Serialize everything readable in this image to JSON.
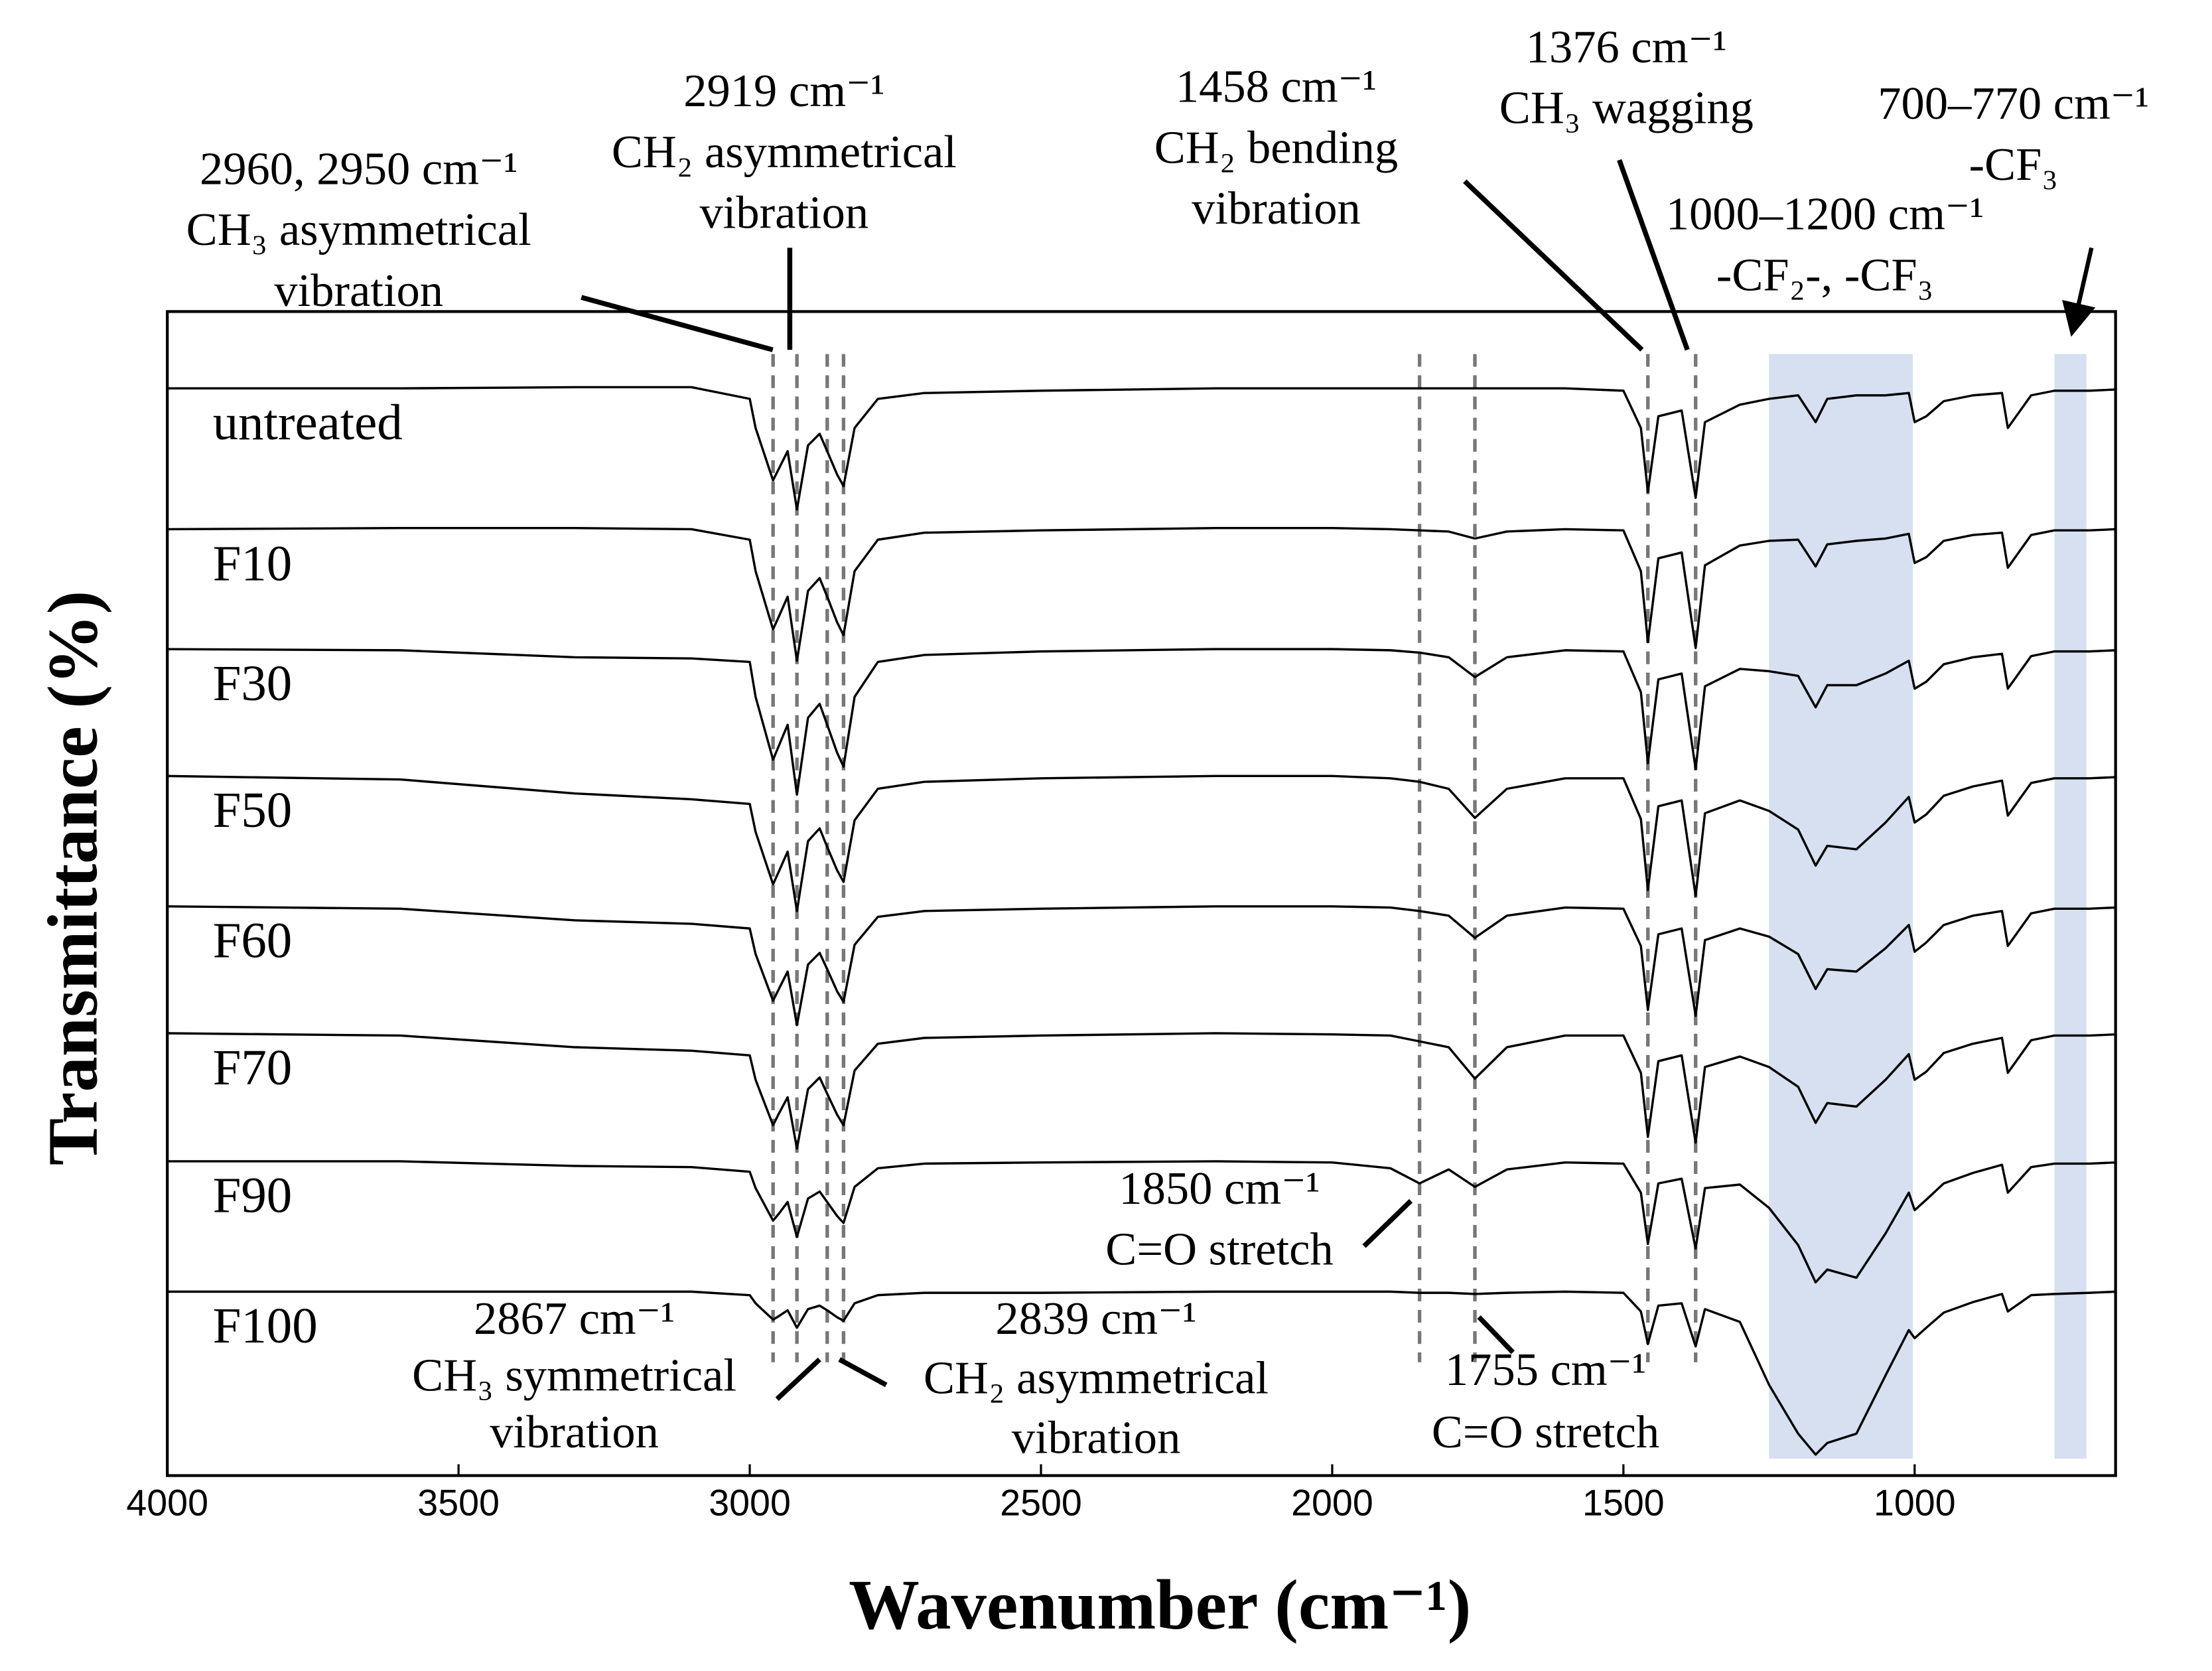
{
  "chart_data": {
    "type": "line",
    "x_label": "Wavenumber (cm⁻¹)",
    "y_label": "Transmittance (%)",
    "xlim": [
      4000,
      655
    ],
    "ylim": [
      0,
      100
    ],
    "xticks": [
      4000,
      3500,
      3000,
      2500,
      2000,
      1500,
      1000
    ],
    "grid": false,
    "x": [
      4000,
      3600,
      3300,
      3100,
      3000,
      2990,
      2960,
      2950,
      2935,
      2919,
      2900,
      2880,
      2867,
      2850,
      2839,
      2820,
      2780,
      2700,
      2500,
      2200,
      2000,
      1900,
      1850,
      1800,
      1755,
      1700,
      1600,
      1500,
      1470,
      1458,
      1440,
      1400,
      1376,
      1360,
      1300,
      1250,
      1200,
      1170,
      1150,
      1100,
      1050,
      1010,
      1000,
      980,
      950,
      900,
      850,
      840,
      800,
      760,
      700,
      655
    ],
    "series": [
      {
        "name": "untreated",
        "color": "#000000",
        "values": [
          93.4,
          93.4,
          93.5,
          93.5,
          92.5,
          90.0,
          85.5,
          86.5,
          88.0,
          83.0,
          88.5,
          89.5,
          88.0,
          86.0,
          85.0,
          90.0,
          92.5,
          93.0,
          93.2,
          93.4,
          93.4,
          93.4,
          93.4,
          93.4,
          93.4,
          93.4,
          93.4,
          93.2,
          90.0,
          84.5,
          91.0,
          91.5,
          84.0,
          90.5,
          92.0,
          92.5,
          92.8,
          90.5,
          92.5,
          92.8,
          92.8,
          93.0,
          90.5,
          91.0,
          92.3,
          92.8,
          93.0,
          90.0,
          92.8,
          93.2,
          93.2,
          93.3
        ]
      },
      {
        "name": "F10",
        "color": "#000000",
        "values": [
          81.3,
          81.4,
          81.4,
          81.3,
          80.4,
          77.7,
          72.7,
          73.8,
          75.5,
          70.0,
          76.0,
          77.1,
          75.5,
          73.3,
          72.2,
          77.7,
          80.4,
          81.0,
          81.2,
          81.4,
          81.4,
          81.3,
          81.2,
          81.1,
          80.5,
          81.1,
          81.3,
          81.2,
          77.7,
          71.6,
          78.8,
          79.3,
          71.1,
          78.2,
          79.9,
          80.3,
          80.4,
          78.1,
          80.0,
          80.3,
          80.5,
          80.9,
          78.4,
          78.9,
          80.3,
          80.8,
          81.0,
          78.0,
          80.8,
          81.2,
          81.2,
          81.3
        ]
      },
      {
        "name": "F30",
        "color": "#000000",
        "values": [
          71.0,
          70.9,
          70.3,
          70.2,
          69.9,
          66.9,
          61.5,
          62.7,
          64.5,
          58.5,
          65.1,
          66.3,
          64.5,
          62.1,
          60.9,
          66.9,
          69.9,
          70.5,
          70.8,
          71.0,
          71.0,
          70.9,
          70.7,
          70.3,
          68.6,
          70.3,
          70.9,
          70.8,
          67.3,
          61.2,
          68.4,
          68.9,
          60.7,
          67.8,
          69.3,
          69.1,
          68.7,
          66.0,
          67.9,
          67.9,
          68.9,
          70.0,
          67.6,
          68.2,
          69.7,
          70.3,
          70.6,
          67.6,
          70.4,
          70.8,
          70.8,
          70.9
        ]
      },
      {
        "name": "F50",
        "color": "#000000",
        "values": [
          60.1,
          59.8,
          58.6,
          58.1,
          57.7,
          55.3,
          50.8,
          51.9,
          53.6,
          48.5,
          54.5,
          55.6,
          54.0,
          52.0,
          51.0,
          56.3,
          59.0,
          59.6,
          59.9,
          60.1,
          60.1,
          59.9,
          59.6,
          59.0,
          56.5,
          59.0,
          59.9,
          59.9,
          56.4,
          50.3,
          57.5,
          58.0,
          49.8,
          56.9,
          58.0,
          57.1,
          55.5,
          52.4,
          54.1,
          53.8,
          56.1,
          58.3,
          56.1,
          56.8,
          58.4,
          59.2,
          59.7,
          56.7,
          59.5,
          59.9,
          59.9,
          60.0
        ]
      },
      {
        "name": "F60",
        "color": "#000000",
        "values": [
          48.9,
          48.7,
          47.7,
          47.4,
          47.0,
          44.8,
          40.8,
          41.8,
          43.3,
          38.7,
          43.9,
          44.9,
          43.5,
          41.6,
          40.7,
          45.6,
          48.0,
          48.5,
          48.7,
          48.9,
          48.9,
          48.8,
          48.5,
          48.1,
          46.2,
          48.1,
          48.8,
          48.7,
          45.5,
          40.0,
          46.5,
          47.0,
          39.5,
          46.0,
          47.0,
          46.3,
          44.8,
          41.8,
          43.5,
          43.3,
          45.3,
          47.3,
          45.0,
          45.8,
          47.3,
          48.1,
          48.5,
          45.5,
          48.3,
          48.7,
          48.7,
          48.8
        ]
      },
      {
        "name": "F70",
        "color": "#000000",
        "values": [
          38.0,
          37.8,
          36.8,
          36.5,
          36.1,
          34.0,
          30.1,
          31.1,
          32.5,
          28.1,
          33.2,
          34.2,
          32.8,
          31.0,
          30.1,
          34.8,
          37.1,
          37.6,
          37.8,
          38.0,
          37.9,
          37.8,
          37.3,
          36.8,
          34.1,
          36.8,
          37.8,
          37.8,
          34.6,
          29.1,
          35.6,
          36.1,
          28.6,
          35.1,
          36.0,
          35.1,
          33.4,
          30.3,
          32.0,
          31.7,
          34.0,
          36.2,
          34.0,
          34.7,
          36.3,
          37.1,
          37.6,
          34.6,
          37.4,
          37.8,
          37.8,
          37.9
        ]
      },
      {
        "name": "F90",
        "color": "#000000",
        "values": [
          27.0,
          27.0,
          26.6,
          26.5,
          26.1,
          24.7,
          21.9,
          22.5,
          23.5,
          20.5,
          23.8,
          24.4,
          23.5,
          22.3,
          21.7,
          24.8,
          26.4,
          26.8,
          26.9,
          27.0,
          26.9,
          26.4,
          25.1,
          26.3,
          24.8,
          26.3,
          26.9,
          26.8,
          24.3,
          19.9,
          25.1,
          25.5,
          19.5,
          24.7,
          25.0,
          23.0,
          19.8,
          16.6,
          17.7,
          17.0,
          20.8,
          24.3,
          22.8,
          23.7,
          25.1,
          26.0,
          26.7,
          24.3,
          26.5,
          26.8,
          26.8,
          26.9
        ]
      },
      {
        "name": "F100",
        "color": "#000000",
        "values": [
          15.8,
          15.8,
          15.8,
          15.8,
          15.5,
          14.8,
          13.4,
          13.7,
          14.2,
          12.7,
          14.3,
          14.6,
          14.2,
          13.6,
          13.3,
          14.8,
          15.5,
          15.7,
          15.7,
          15.8,
          15.8,
          15.8,
          15.7,
          15.7,
          15.6,
          15.7,
          15.8,
          15.7,
          14.1,
          11.3,
          14.6,
          14.8,
          11.1,
          14.3,
          13.2,
          7.8,
          3.6,
          1.8,
          2.8,
          3.6,
          8.6,
          12.5,
          11.8,
          12.7,
          14.0,
          14.9,
          15.6,
          14.1,
          15.5,
          15.6,
          15.7,
          15.8
        ]
      }
    ],
    "dashed_lines": [
      2960,
      2919,
      2867,
      2839,
      1850,
      1755,
      1458,
      1376
    ],
    "shaded_ranges": [
      [
        1250,
        1003
      ],
      [
        760,
        705
      ]
    ],
    "shade_color": "#d6e0f0",
    "annotations": [
      {
        "lines": [
          "2960, 2950 cm⁻¹",
          "CH₃ asymmetrical",
          "vibration"
        ]
      },
      {
        "lines": [
          "2919 cm⁻¹",
          "CH₂ asymmetrical",
          "vibration"
        ]
      },
      {
        "lines": [
          "1458 cm⁻¹",
          "CH₂ bending",
          "vibration"
        ]
      },
      {
        "lines": [
          "1376 cm⁻¹",
          "CH₃ wagging"
        ]
      },
      {
        "lines": [
          "1000–1200 cm⁻¹",
          "-CF₂-, -CF₃"
        ]
      },
      {
        "lines": [
          "700–770 cm⁻¹",
          "-CF₃"
        ]
      },
      {
        "lines": [
          "1850 cm⁻¹",
          "C=O stretch"
        ]
      },
      {
        "lines": [
          "2867 cm⁻¹",
          "CH₃ symmetrical",
          "vibration"
        ]
      },
      {
        "lines": [
          "2839 cm⁻¹",
          "CH₂ asymmetrical",
          "vibration"
        ]
      },
      {
        "lines": [
          "1755 cm⁻¹",
          "C=O stretch"
        ]
      }
    ]
  }
}
